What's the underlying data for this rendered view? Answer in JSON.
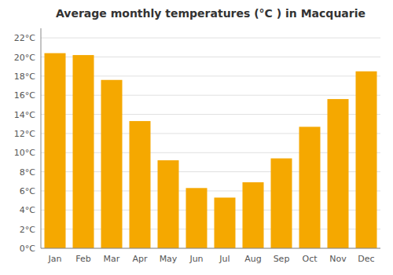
{
  "chart_data": {
    "type": "bar",
    "title": "Average monthly temperatures (°C ) in Macquarie",
    "categories": [
      "Jan",
      "Feb",
      "Mar",
      "Apr",
      "May",
      "Jun",
      "Jul",
      "Aug",
      "Sep",
      "Oct",
      "Nov",
      "Dec"
    ],
    "values": [
      20.4,
      20.2,
      17.6,
      13.3,
      9.2,
      6.3,
      5.3,
      6.9,
      9.4,
      12.7,
      15.6,
      18.5
    ],
    "color": "#F5A800",
    "ylim": [
      0,
      23
    ],
    "yticks": [
      {
        "value": 0,
        "label": "0°C"
      },
      {
        "value": 2,
        "label": "2°C"
      },
      {
        "value": 4,
        "label": "4°C"
      },
      {
        "value": 6,
        "label": "6°C"
      },
      {
        "value": 8,
        "label": "8°C"
      },
      {
        "value": 10,
        "label": "10°C"
      },
      {
        "value": 12,
        "label": "12°C"
      },
      {
        "value": 14,
        "label": "14°C"
      },
      {
        "value": 16,
        "label": "16°C"
      },
      {
        "value": 18,
        "label": "18°C"
      },
      {
        "value": 20,
        "label": "20°C"
      },
      {
        "value": 22,
        "label": "22°C"
      }
    ],
    "grid": true
  }
}
